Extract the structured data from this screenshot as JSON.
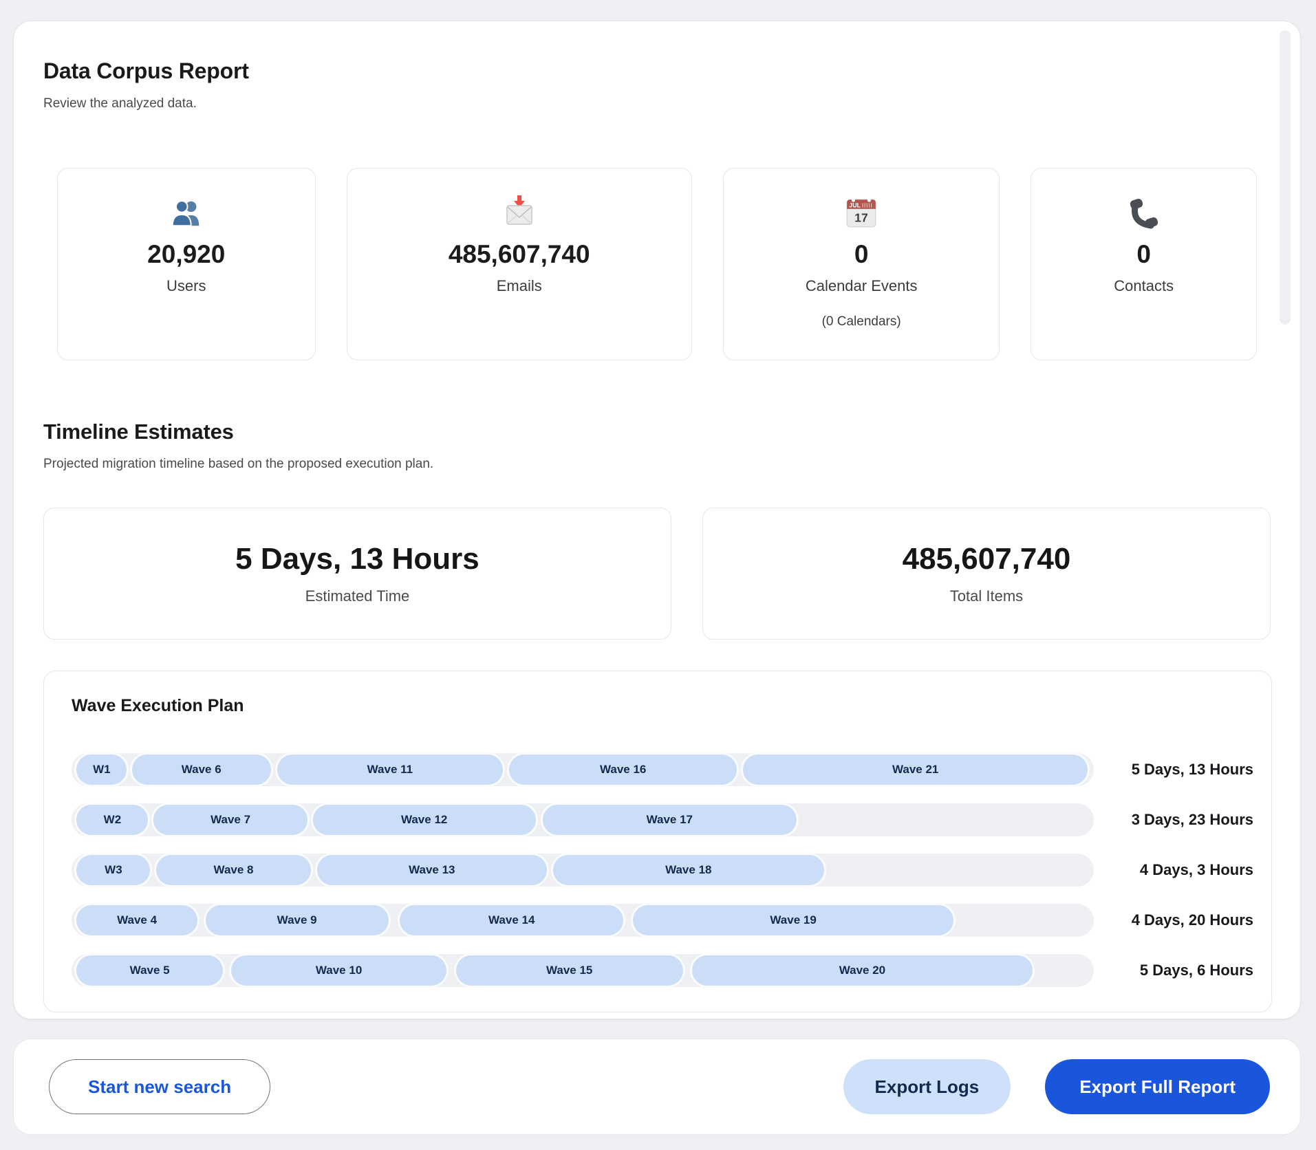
{
  "colors": {
    "page_bg": "#eef0f4",
    "accent_blue": "#1a56db",
    "pill_bg": "#cbddf7",
    "pill_text": "#13294e",
    "export_logs_bg": "#cfe0fb",
    "export_report_bg": "#1a56db"
  },
  "report": {
    "title": "Data Corpus Report",
    "subtitle": "Review the analyzed data.",
    "stats": [
      {
        "icon": "users-icon",
        "value": "20,920",
        "label": "Users"
      },
      {
        "icon": "email-icon",
        "value": "485,607,740",
        "label": "Emails"
      },
      {
        "icon": "calendar-icon",
        "value": "0",
        "label": "Calendar Events",
        "note": "(0 Calendars)"
      },
      {
        "icon": "phone-icon",
        "value": "0",
        "label": "Contacts"
      }
    ],
    "calendar_icon": {
      "month": "JUL",
      "day": "17"
    }
  },
  "timeline": {
    "title": "Timeline Estimates",
    "subtitle": "Projected migration timeline based on the proposed execution plan.",
    "summary": [
      {
        "value": "5 Days, 13 Hours",
        "label": "Estimated Time"
      },
      {
        "value": "485,607,740",
        "label": "Total Items"
      }
    ]
  },
  "wave_plan": {
    "title": "Wave Execution Plan",
    "rows": [
      {
        "duration": "5 Days, 13 Hours",
        "segments": [
          {
            "label": "W1",
            "left_pct": 0.5,
            "width_pct": 4.9
          },
          {
            "label": "Wave 6",
            "left_pct": 5.9,
            "width_pct": 13.6
          },
          {
            "label": "Wave 11",
            "left_pct": 20.1,
            "width_pct": 22.1
          },
          {
            "label": "Wave 16",
            "left_pct": 42.8,
            "width_pct": 22.3
          },
          {
            "label": "Wave 21",
            "left_pct": 65.7,
            "width_pct": 33.7
          }
        ]
      },
      {
        "duration": "3 Days, 23 Hours",
        "segments": [
          {
            "label": "W2",
            "left_pct": 0.5,
            "width_pct": 7.0
          },
          {
            "label": "Wave 7",
            "left_pct": 8.0,
            "width_pct": 15.1
          },
          {
            "label": "Wave 12",
            "left_pct": 23.6,
            "width_pct": 21.8
          },
          {
            "label": "Wave 17",
            "left_pct": 46.1,
            "width_pct": 24.8
          }
        ]
      },
      {
        "duration": "4 Days, 3 Hours",
        "segments": [
          {
            "label": "W3",
            "left_pct": 0.5,
            "width_pct": 7.2
          },
          {
            "label": "Wave 8",
            "left_pct": 8.3,
            "width_pct": 15.1
          },
          {
            "label": "Wave 13",
            "left_pct": 24.0,
            "width_pct": 22.5
          },
          {
            "label": "Wave 18",
            "left_pct": 47.1,
            "width_pct": 26.5
          }
        ]
      },
      {
        "duration": "4 Days, 20 Hours",
        "segments": [
          {
            "label": "Wave 4",
            "left_pct": 0.5,
            "width_pct": 11.8
          },
          {
            "label": "Wave 9",
            "left_pct": 13.1,
            "width_pct": 17.9
          },
          {
            "label": "Wave 14",
            "left_pct": 32.1,
            "width_pct": 21.9
          },
          {
            "label": "Wave 19",
            "left_pct": 54.9,
            "width_pct": 31.4
          }
        ]
      },
      {
        "duration": "5 Days, 6 Hours",
        "segments": [
          {
            "label": "Wave 5",
            "left_pct": 0.5,
            "width_pct": 14.3
          },
          {
            "label": "Wave 10",
            "left_pct": 15.6,
            "width_pct": 21.1
          },
          {
            "label": "Wave 15",
            "left_pct": 37.6,
            "width_pct": 22.2
          },
          {
            "label": "Wave 20",
            "left_pct": 60.7,
            "width_pct": 33.3
          }
        ]
      }
    ]
  },
  "footer": {
    "start_new_search": "Start new search",
    "export_logs": "Export Logs",
    "export_full_report": "Export Full Report"
  }
}
